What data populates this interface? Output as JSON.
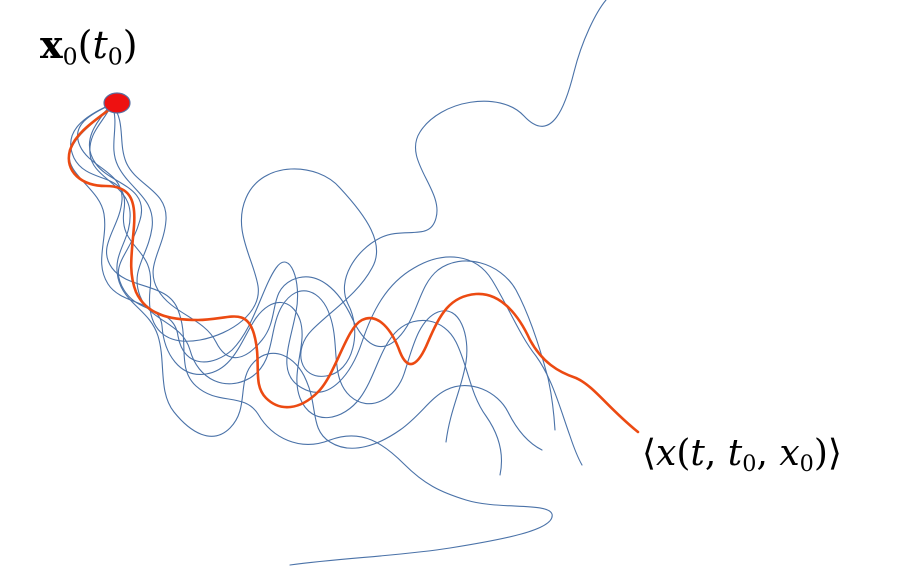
{
  "labels": {
    "start_point": {
      "bold_symbol": "x",
      "symbol_subscript": "0",
      "open_paren": "(",
      "argument": "t",
      "argument_subscript": "0",
      "close_paren": ")"
    },
    "mean_path": {
      "open_bracket": "⟨",
      "symbol": "x",
      "open_paren": "(",
      "arg1": "t",
      "comma1": ", ",
      "arg2": "t",
      "arg2_subscript": "0",
      "comma2": ", ",
      "arg3": "x",
      "arg3_subscript": "0",
      "close_paren": ")",
      "close_bracket": "⟩"
    }
  },
  "colors": {
    "trajectory": "#4a72a8",
    "mean_path": "#ec4a12",
    "start_marker_fill": "#ee1111",
    "start_marker_stroke": "#5a6fa0"
  }
}
